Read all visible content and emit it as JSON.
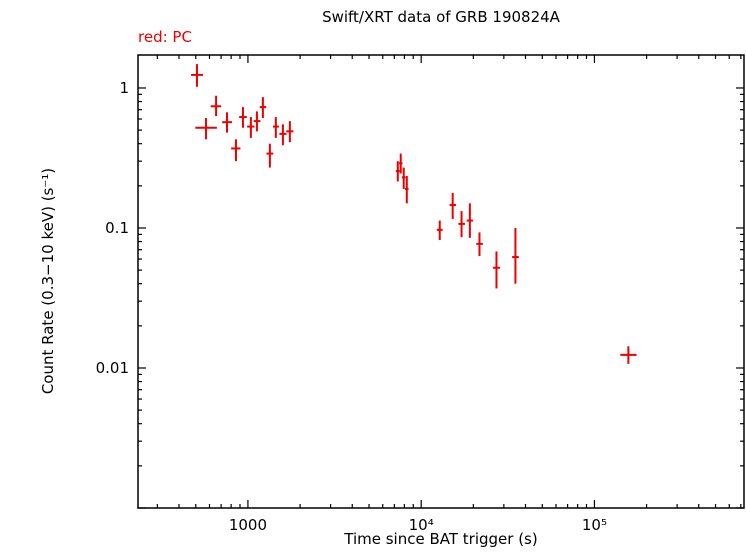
{
  "chart_data": {
    "type": "scatter",
    "title": "Swift/XRT data of GRB 190824A",
    "legend_label": "red: PC",
    "legend_position": "top-left",
    "xlabel": "Time since BAT trigger (s)",
    "ylabel": "Count Rate (0.3−10 keV) (s⁻¹)",
    "x_scale": "log",
    "y_scale": "log",
    "xlim": [
      232,
      730000
    ],
    "ylim": [
      0.001,
      1.72
    ],
    "grid": false,
    "x_tick_labels": [
      {
        "value": 1000,
        "label": "1000"
      },
      {
        "value": 10000,
        "label": "10⁴"
      },
      {
        "value": 100000,
        "label": "10⁵"
      }
    ],
    "y_tick_labels": [
      {
        "value": 1,
        "label": "1"
      },
      {
        "value": 0.1,
        "label": "0.1"
      },
      {
        "value": 0.01,
        "label": "0.01"
      }
    ],
    "series": [
      {
        "name": "PC",
        "color": "#ee0000",
        "marker": "cross-error-bars",
        "points": [
          {
            "t": 508,
            "t_lo": 470,
            "t_hi": 550,
            "r": 1.24,
            "r_lo": 1.02,
            "r_hi": 1.48
          },
          {
            "t": 573,
            "t_lo": 497,
            "t_hi": 662,
            "r": 0.52,
            "r_lo": 0.43,
            "r_hi": 0.61
          },
          {
            "t": 655,
            "t_lo": 610,
            "t_hi": 700,
            "r": 0.74,
            "r_lo": 0.63,
            "r_hi": 0.88
          },
          {
            "t": 757,
            "t_lo": 710,
            "t_hi": 810,
            "r": 0.57,
            "r_lo": 0.48,
            "r_hi": 0.67
          },
          {
            "t": 853,
            "t_lo": 800,
            "t_hi": 905,
            "r": 0.37,
            "r_lo": 0.3,
            "r_hi": 0.43
          },
          {
            "t": 936,
            "t_lo": 890,
            "t_hi": 985,
            "r": 0.62,
            "r_lo": 0.52,
            "r_hi": 0.73
          },
          {
            "t": 1040,
            "t_lo": 990,
            "t_hi": 1090,
            "r": 0.53,
            "r_lo": 0.44,
            "r_hi": 0.62
          },
          {
            "t": 1127,
            "t_lo": 1080,
            "t_hi": 1180,
            "r": 0.58,
            "r_lo": 0.49,
            "r_hi": 0.68
          },
          {
            "t": 1220,
            "t_lo": 1170,
            "t_hi": 1275,
            "r": 0.73,
            "r_lo": 0.61,
            "r_hi": 0.86
          },
          {
            "t": 1339,
            "t_lo": 1280,
            "t_hi": 1400,
            "r": 0.34,
            "r_lo": 0.27,
            "r_hi": 0.4
          },
          {
            "t": 1449,
            "t_lo": 1395,
            "t_hi": 1510,
            "r": 0.53,
            "r_lo": 0.44,
            "r_hi": 0.62
          },
          {
            "t": 1592,
            "t_lo": 1520,
            "t_hi": 1670,
            "r": 0.47,
            "r_lo": 0.39,
            "r_hi": 0.55
          },
          {
            "t": 1746,
            "t_lo": 1665,
            "t_hi": 1830,
            "r": 0.49,
            "r_lo": 0.41,
            "r_hi": 0.58
          },
          {
            "t": 7330,
            "t_lo": 7150,
            "t_hi": 7520,
            "r": 0.255,
            "r_lo": 0.215,
            "r_hi": 0.3
          },
          {
            "t": 7620,
            "t_lo": 7450,
            "t_hi": 7800,
            "r": 0.29,
            "r_lo": 0.245,
            "r_hi": 0.34
          },
          {
            "t": 7930,
            "t_lo": 7750,
            "t_hi": 8120,
            "r": 0.23,
            "r_lo": 0.19,
            "r_hi": 0.27
          },
          {
            "t": 8260,
            "t_lo": 8060,
            "t_hi": 8460,
            "r": 0.19,
            "r_lo": 0.15,
            "r_hi": 0.235
          },
          {
            "t": 12800,
            "t_lo": 12300,
            "t_hi": 13300,
            "r": 0.097,
            "r_lo": 0.082,
            "r_hi": 0.113
          },
          {
            "t": 15200,
            "t_lo": 14600,
            "t_hi": 15900,
            "r": 0.146,
            "r_lo": 0.116,
            "r_hi": 0.178
          },
          {
            "t": 17100,
            "t_lo": 16400,
            "t_hi": 17900,
            "r": 0.107,
            "r_lo": 0.086,
            "r_hi": 0.132
          },
          {
            "t": 19100,
            "t_lo": 18300,
            "t_hi": 19900,
            "r": 0.113,
            "r_lo": 0.085,
            "r_hi": 0.15
          },
          {
            "t": 21700,
            "t_lo": 20800,
            "t_hi": 22700,
            "r": 0.077,
            "r_lo": 0.063,
            "r_hi": 0.093
          },
          {
            "t": 27200,
            "t_lo": 26000,
            "t_hi": 28500,
            "r": 0.052,
            "r_lo": 0.037,
            "r_hi": 0.068
          },
          {
            "t": 35000,
            "t_lo": 33500,
            "t_hi": 36600,
            "r": 0.062,
            "r_lo": 0.04,
            "r_hi": 0.1
          },
          {
            "t": 157000,
            "t_lo": 141000,
            "t_hi": 175000,
            "r": 0.0124,
            "r_lo": 0.0107,
            "r_hi": 0.0143
          }
        ]
      }
    ]
  }
}
